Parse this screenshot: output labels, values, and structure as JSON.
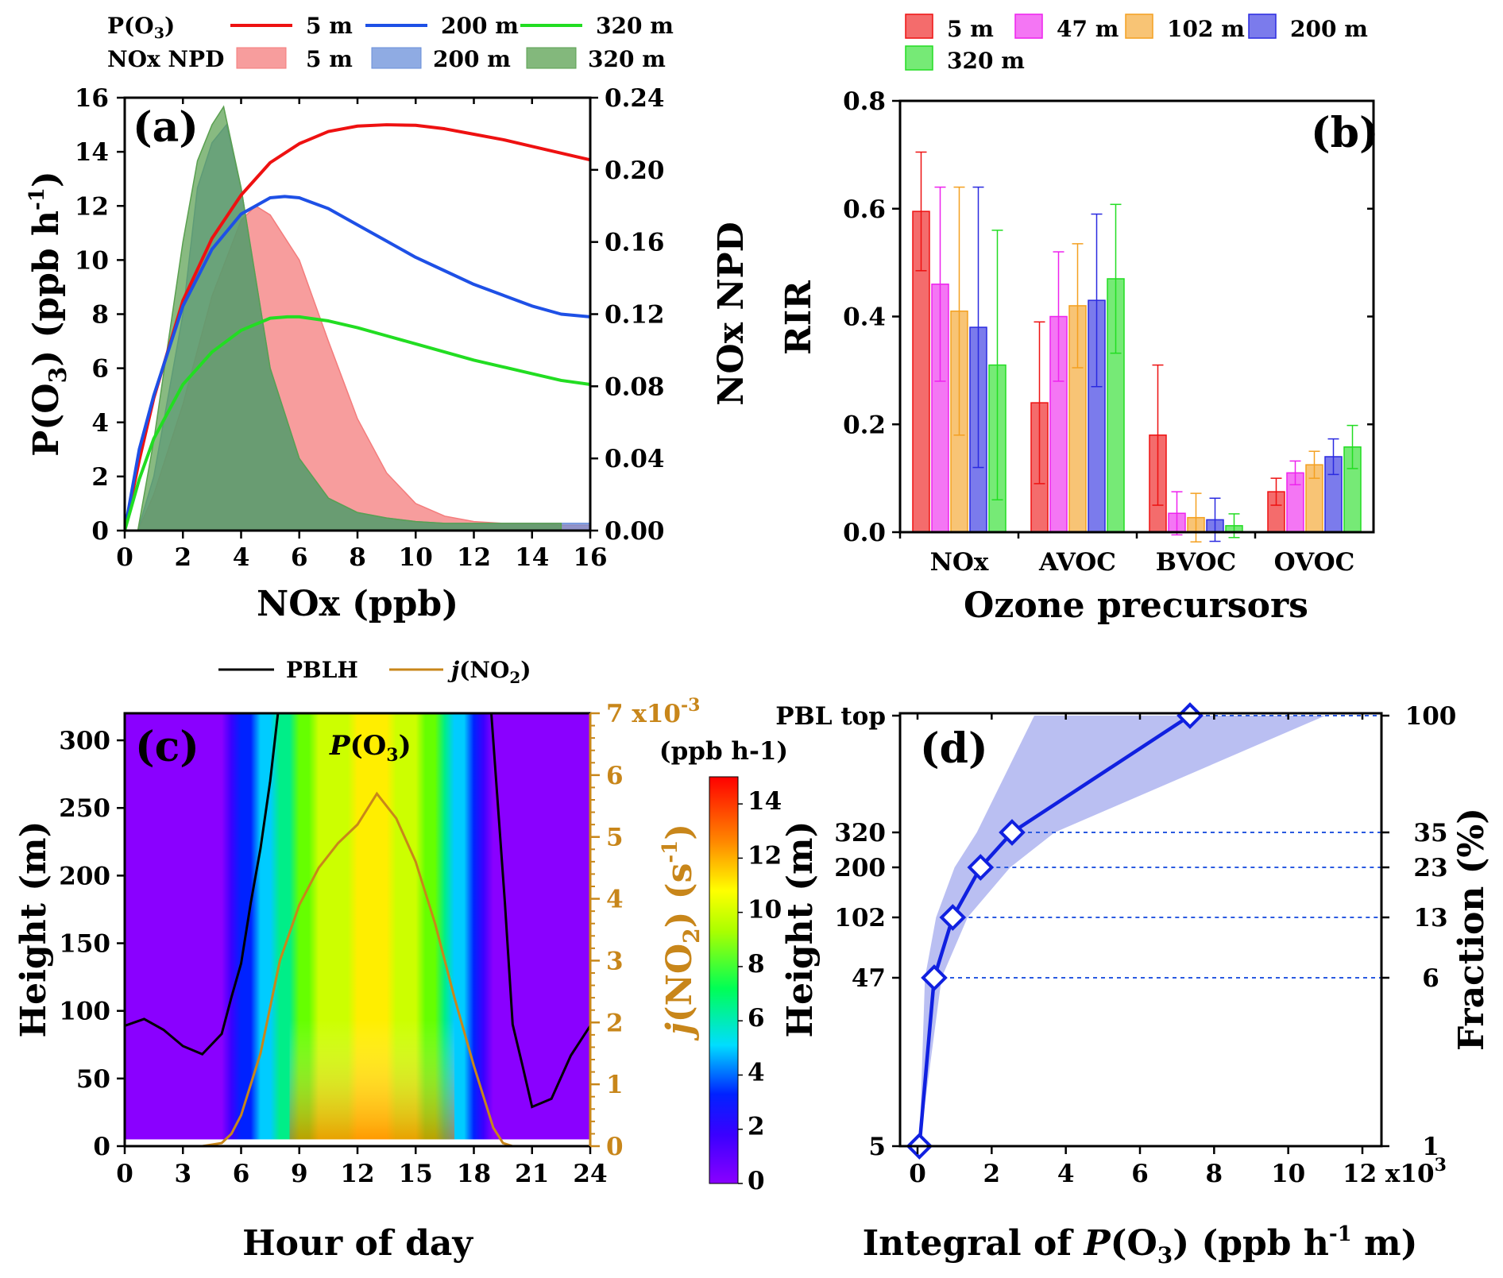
{
  "chart_data": [
    {
      "panel": "(a)",
      "type": "line+area",
      "xlabel": "NOx (ppb)",
      "ylabel": "P(O3) (ppb h-1)",
      "ylabel2": "NOx NPD",
      "xlim": [
        0,
        16
      ],
      "ylim": [
        0,
        16
      ],
      "ylim2": [
        0,
        0.24
      ],
      "xticks": [
        0,
        2,
        4,
        6,
        8,
        10,
        12,
        14,
        16
      ],
      "yticks": [
        0,
        2,
        4,
        6,
        8,
        10,
        12,
        14,
        16
      ],
      "yticks2": [
        "0.00",
        "0.04",
        "0.08",
        "0.12",
        "0.16",
        "0.20",
        "0.24"
      ],
      "legend_group1": "P(O3)",
      "legend_group2": "NOx NPD",
      "lines": [
        {
          "name": "5 m",
          "color": "#ee1111",
          "x": [
            0,
            0.5,
            1,
            2,
            3,
            4,
            5,
            6,
            7,
            8,
            9,
            10,
            11,
            12,
            13,
            14,
            15,
            16
          ],
          "y": [
            0,
            2.6,
            4.9,
            8.5,
            10.8,
            12.4,
            13.6,
            14.3,
            14.75,
            14.95,
            15,
            14.98,
            14.85,
            14.65,
            14.45,
            14.2,
            13.95,
            13.7
          ]
        },
        {
          "name": "200 m",
          "color": "#1e50e6",
          "x": [
            0,
            0.5,
            1,
            2,
            3,
            4,
            5,
            5.5,
            6,
            7,
            8,
            9,
            10,
            11,
            12,
            13,
            14,
            15,
            16
          ],
          "y": [
            0,
            3.0,
            5.0,
            8.3,
            10.4,
            11.7,
            12.3,
            12.35,
            12.3,
            11.9,
            11.3,
            10.7,
            10.1,
            9.6,
            9.1,
            8.7,
            8.3,
            8.0,
            7.9
          ]
        },
        {
          "name": "320 m",
          "color": "#22dd22",
          "x": [
            0,
            0.5,
            1,
            2,
            3,
            4,
            5,
            5.6,
            6,
            7,
            8,
            9,
            10,
            11,
            12,
            13,
            14,
            15,
            16
          ],
          "y": [
            0,
            1.9,
            3.4,
            5.4,
            6.6,
            7.4,
            7.85,
            7.9,
            7.9,
            7.75,
            7.5,
            7.2,
            6.9,
            6.6,
            6.3,
            6.05,
            5.8,
            5.55,
            5.4
          ]
        }
      ],
      "areas": [
        {
          "name": "5 m",
          "color": "#f47c7c",
          "x": [
            0.45,
            1,
            2,
            3,
            4,
            4.5,
            5,
            6,
            7,
            8,
            9,
            10,
            11,
            12,
            13,
            14,
            15,
            16
          ],
          "y": [
            0,
            0.02,
            0.07,
            0.13,
            0.172,
            0.18,
            0.175,
            0.15,
            0.105,
            0.062,
            0.032,
            0.015,
            0.008,
            0.005,
            0.004,
            0.004,
            0.003,
            0.003
          ]
        },
        {
          "name": "200 m",
          "color": "#6a8fd9",
          "x": [
            0.45,
            1,
            2,
            2.5,
            3,
            3.5,
            4,
            4.5,
            5,
            6,
            7,
            8,
            9,
            10,
            11,
            12,
            13,
            14,
            15,
            16
          ],
          "y": [
            0,
            0.03,
            0.12,
            0.19,
            0.215,
            0.225,
            0.19,
            0.14,
            0.09,
            0.04,
            0.018,
            0.01,
            0.007,
            0.005,
            0.004,
            0.004,
            0.004,
            0.004,
            0.004,
            0.004
          ]
        },
        {
          "name": "320 m",
          "color": "#5aa050",
          "x": [
            0.45,
            1,
            2,
            2.5,
            3,
            3.4,
            4,
            4.5,
            5,
            6,
            7,
            8,
            9,
            10,
            11,
            12,
            13,
            14,
            15
          ],
          "y": [
            0,
            0.05,
            0.16,
            0.205,
            0.225,
            0.235,
            0.19,
            0.14,
            0.09,
            0.04,
            0.018,
            0.01,
            0.007,
            0.005,
            0.004,
            0.004,
            0.004,
            0.004,
            0.004
          ]
        }
      ]
    },
    {
      "panel": "(b)",
      "type": "bar",
      "xlabel": "Ozone precursors",
      "ylabel": "RIR",
      "ylim": [
        0,
        0.8
      ],
      "yticks": [
        "0.0",
        "0.2",
        "0.4",
        "0.6",
        "0.8"
      ],
      "categories": [
        "NOx",
        "AVOC",
        "BVOC",
        "OVOC"
      ],
      "series": [
        {
          "name": "5 m",
          "color": "#ee1111",
          "values": [
            0.595,
            0.24,
            0.18,
            0.075
          ],
          "err": [
            0.11,
            0.15,
            0.13,
            0.025
          ]
        },
        {
          "name": "47 m",
          "color": "#ee22ee",
          "values": [
            0.46,
            0.4,
            0.035,
            0.11
          ],
          "err": [
            0.18,
            0.12,
            0.04,
            0.022
          ]
        },
        {
          "name": "102 m",
          "color": "#f4a020",
          "values": [
            0.41,
            0.42,
            0.027,
            0.125
          ],
          "err": [
            0.23,
            0.115,
            0.045,
            0.025
          ]
        },
        {
          "name": "200 m",
          "color": "#2a2ae0",
          "values": [
            0.38,
            0.43,
            0.023,
            0.14
          ],
          "err": [
            0.26,
            0.16,
            0.04,
            0.033
          ]
        },
        {
          "name": "320 m",
          "color": "#22dd22",
          "values": [
            0.31,
            0.47,
            0.012,
            0.158
          ],
          "err": [
            0.25,
            0.138,
            0.022,
            0.04
          ]
        }
      ]
    },
    {
      "panel": "(c)",
      "type": "heatmap",
      "title": "P(O3)",
      "xlabel": "Hour of day",
      "ylabel": "Height (m)",
      "ylabel2": "j(NO2) (s-1)",
      "xlim": [
        0,
        24
      ],
      "ylim": [
        0,
        320
      ],
      "ylim2": [
        0,
        7
      ],
      "xticks": [
        0,
        3,
        6,
        9,
        12,
        15,
        18,
        21,
        24
      ],
      "yticks": [
        0,
        50,
        100,
        150,
        200,
        250,
        300
      ],
      "yticks2": [
        0,
        1,
        2,
        3,
        4,
        5,
        6,
        7
      ],
      "y2_multiplier": "7 x10-3",
      "colorbar": {
        "label": "(ppb h-1)",
        "ticks": [
          0,
          2,
          4,
          6,
          8,
          10,
          12,
          14
        ],
        "range": [
          0,
          15
        ]
      },
      "legend": [
        "PBLH",
        "j(NO2)"
      ],
      "pblh": {
        "x": [
          0,
          1,
          2,
          3,
          4,
          5,
          5.5,
          6,
          6.5,
          7,
          7.5,
          7.9,
          18.9,
          19.2,
          19.6,
          20,
          20.5,
          21,
          22,
          23,
          24
        ],
        "y": [
          89,
          94,
          86,
          74,
          68,
          83,
          110,
          135,
          180,
          220,
          270,
          320,
          320,
          260,
          180,
          90,
          60,
          29,
          35,
          67,
          89
        ]
      },
      "jno2": {
        "x": [
          4,
          5,
          5.5,
          6,
          7,
          8,
          9,
          10,
          11,
          12,
          13,
          14,
          15,
          16,
          17,
          18,
          19,
          19.5,
          20
        ],
        "y": [
          0,
          0.05,
          0.2,
          0.5,
          1.5,
          3.0,
          3.9,
          4.5,
          4.9,
          5.2,
          5.7,
          5.3,
          4.6,
          3.6,
          2.4,
          1.3,
          0.3,
          0.05,
          0
        ]
      },
      "po3_diurnal_surface": {
        "x": [
          0,
          4,
          5,
          6,
          7,
          8,
          9,
          10,
          11,
          12,
          13,
          14,
          15,
          16,
          17,
          18,
          19,
          20,
          24
        ],
        "y": [
          0,
          0,
          0.4,
          2,
          4.5,
          7,
          9,
          11,
          12.5,
          13.5,
          14.5,
          13,
          11,
          9,
          6,
          3,
          0.8,
          0,
          0
        ]
      }
    },
    {
      "panel": "(d)",
      "type": "line",
      "xlabel": "Integral of P(O3) (ppb h-1 m)",
      "ylabel": "Height (m)",
      "ylabel2": "Fraction (%)",
      "xlim": [
        0,
        12000
      ],
      "xticks": [
        0,
        2,
        4,
        6,
        8,
        10,
        12
      ],
      "x_multiplier": "x10^3",
      "heights": [
        "5",
        "47",
        "102",
        "200",
        "320",
        "PBL top"
      ],
      "fractions": [
        "1",
        "6",
        "13",
        "23",
        "35",
        "100"
      ],
      "integral_x": [
        50,
        450,
        950,
        1700,
        2550,
        7350
      ],
      "band_low": [
        50,
        200,
        500,
        1000,
        1600,
        3150
      ],
      "band_high": [
        50,
        650,
        1350,
        2500,
        3700,
        11000
      ]
    }
  ]
}
